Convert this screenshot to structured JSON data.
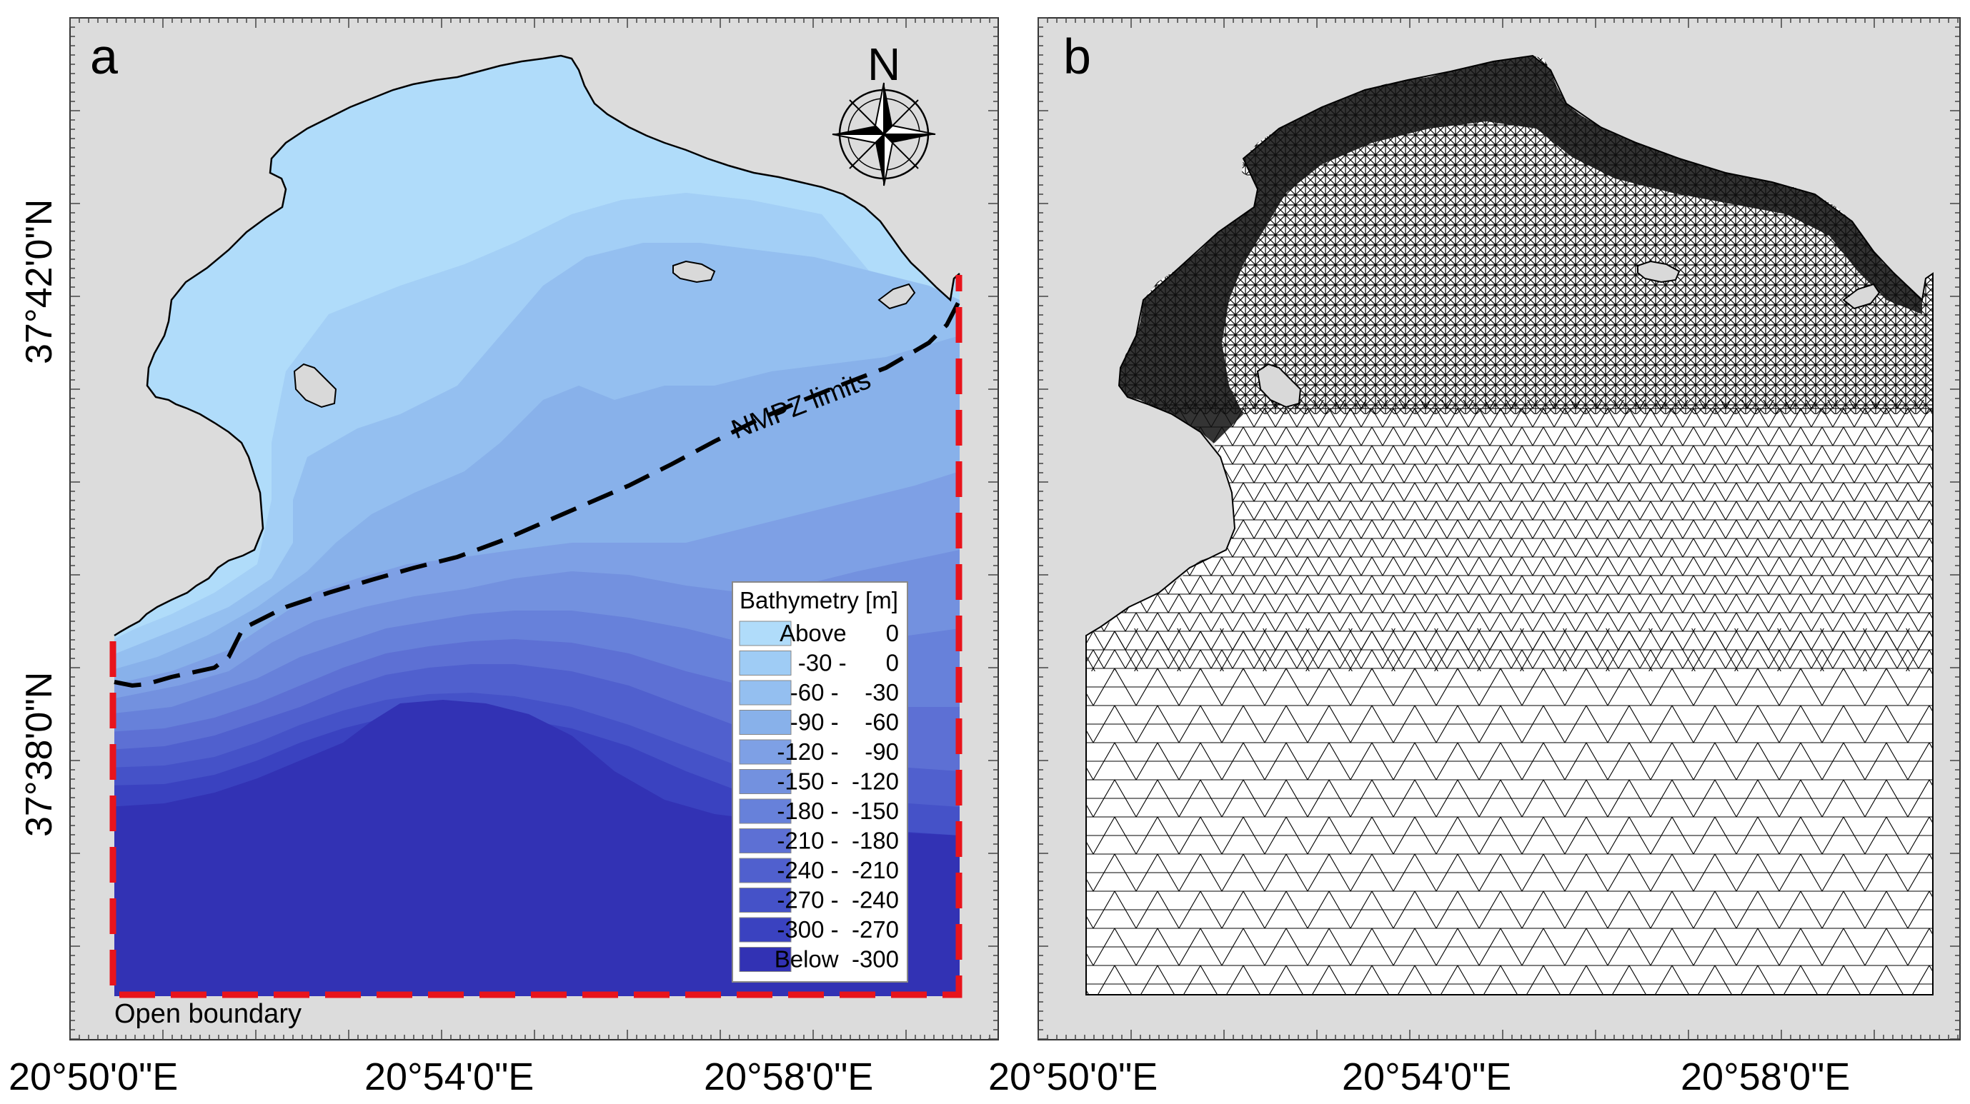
{
  "panel_a": {
    "label": "a",
    "north_label": "N",
    "nmpz_label": "NMPZ limits",
    "open_boundary_label": "Open boundary",
    "legend": {
      "title": "Bathymetry [m]",
      "items": [
        {
          "label": "Above      0",
          "color": "#b0dcfa"
        },
        {
          "label": "-30 -      0",
          "color": "#9fccf5"
        },
        {
          "label": "-60 -    -30",
          "color": "#94bff0"
        },
        {
          "label": "-90 -    -60",
          "color": "#88b1ea"
        },
        {
          "label": "-120 -    -90",
          "color": "#7ea0e5"
        },
        {
          "label": "-150 -  -120",
          "color": "#7391df"
        },
        {
          "label": "-180 -  -150",
          "color": "#6781da"
        },
        {
          "label": "-210 -  -180",
          "color": "#5d70d4"
        },
        {
          "label": "-240 -  -210",
          "color": "#5060ce"
        },
        {
          "label": "-270 -  -240",
          "color": "#4552c8"
        },
        {
          "label": "-300 -  -270",
          "color": "#3a42c0"
        },
        {
          "label": "Below  -300",
          "color": "#3232b4"
        }
      ]
    }
  },
  "panel_b": {
    "label": "b"
  },
  "axes": {
    "y_ticks": [
      "37°42'0\"N",
      "37°38'0\"N"
    ],
    "x_ticks_a": [
      "20°50'0\"E",
      "20°54'0\"E",
      "20°58'0\"E"
    ],
    "x_ticks_b": [
      "20°50'0\"E",
      "20°54'0\"E",
      "20°58'0\"E"
    ]
  },
  "colors": {
    "frame_bg": "#dcdcdc",
    "land": "#d9d9d9",
    "open_boundary": "#e8141c",
    "nmpz_line": "#000000"
  }
}
